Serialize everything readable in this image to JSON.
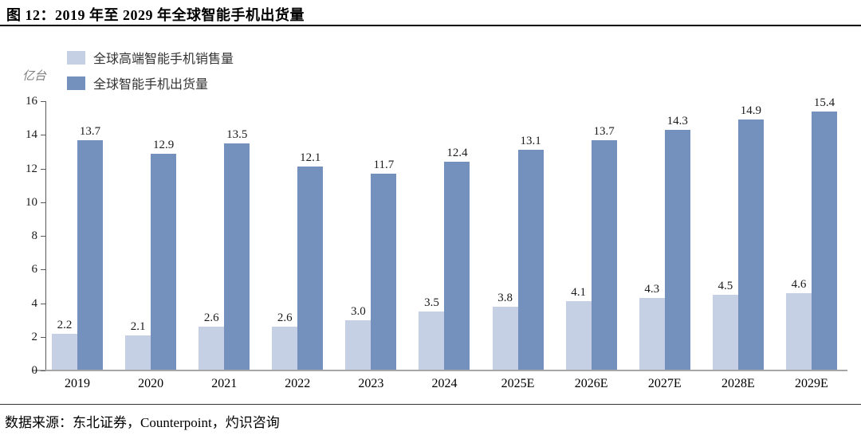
{
  "header": {
    "title": "图 12：2019 年至 2029 年全球智能手机出货量"
  },
  "chart": {
    "unit_label": "亿台"
  },
  "chart_data": {
    "type": "bar",
    "title": "图 12：2019 年至 2029 年全球智能手机出货量",
    "categories": [
      "2019",
      "2020",
      "2021",
      "2022",
      "2023",
      "2024",
      "2025E",
      "2026E",
      "2027E",
      "2028E",
      "2029E"
    ],
    "series": [
      {
        "name": "全球高端智能手机销售量",
        "color": "#c5d0e4",
        "values": [
          2.2,
          2.1,
          2.6,
          2.6,
          3.0,
          3.5,
          3.8,
          4.1,
          4.3,
          4.5,
          4.6
        ]
      },
      {
        "name": "全球智能手机出货量",
        "color": "#7490bc",
        "values": [
          13.7,
          12.9,
          13.5,
          12.1,
          11.7,
          12.4,
          13.1,
          13.7,
          14.3,
          14.9,
          15.4
        ]
      }
    ],
    "xlabel": "",
    "ylabel": "亿台",
    "ylim": [
      0,
      16
    ],
    "yticks": [
      0,
      2,
      4,
      6,
      8,
      10,
      12,
      14,
      16
    ],
    "value_label_decimals": 1,
    "grid": false,
    "legend_position": "top-left"
  },
  "footer": {
    "source": "数据来源：东北证券，Counterpoint，灼识咨询"
  }
}
